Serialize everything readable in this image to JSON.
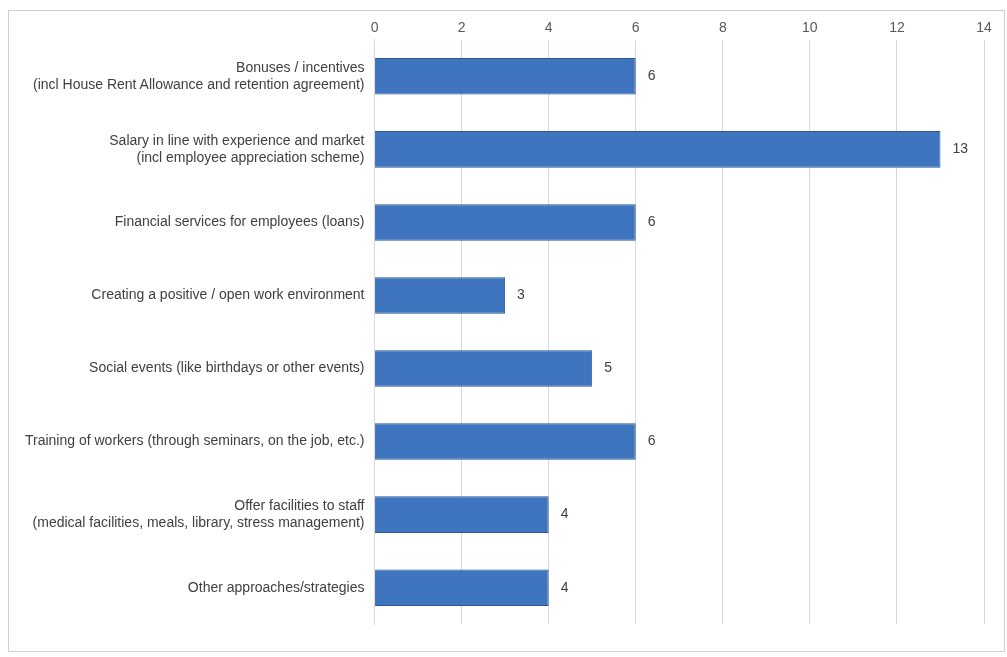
{
  "chart_data": {
    "type": "bar",
    "orientation": "horizontal",
    "categories": [
      "Bonuses / incentives\n(incl House Rent Allowance and retention agreement)",
      "Salary in line with experience and market\n(incl employee appreciation scheme)",
      "Financial services for employees (loans)",
      "Creating a positive / open work environment",
      "Social events (like birthdays or other events)",
      "Training of workers (through seminars, on the job, etc.)",
      "Offer facilities to staff\n(medical facilities, meals, library, stress management)",
      "Other approaches/strategies"
    ],
    "values": [
      6,
      13,
      6,
      3,
      5,
      6,
      4,
      4
    ],
    "color": "#3f75bf",
    "xlim": [
      0,
      14
    ],
    "xticks": [
      0,
      2,
      4,
      6,
      8,
      10,
      12,
      14
    ],
    "grid": "x",
    "legend": false,
    "data_labels": true
  }
}
